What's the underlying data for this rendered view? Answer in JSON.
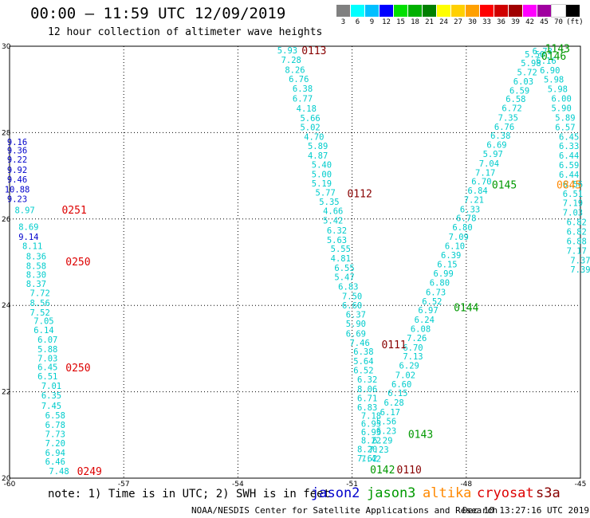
{
  "title": "00:00 – 11:59 UTC 12/09/2019",
  "subtitle": "12 hour collection of altimeter wave heights",
  "note": "note: 1) Time is in UTC; 2) SWH is in feet",
  "satellites": [
    {
      "name": "jason2",
      "color": "#0000cc"
    },
    {
      "name": "jason3",
      "color": "#009900"
    },
    {
      "name": "altika",
      "color": "#ff8800"
    },
    {
      "name": "cryosat",
      "color": "#dd0000"
    },
    {
      "name": "s3a",
      "color": "#880000"
    }
  ],
  "credit": "NOAA/NESDIS Center for Satellite Applications and Research",
  "timestamp": "Dec 10 13:27:16 UTC 2019",
  "color_scale": {
    "labels": [
      "3",
      "6",
      "9",
      "12",
      "15",
      "18",
      "21",
      "24",
      "27",
      "30",
      "33",
      "36",
      "39",
      "42",
      "45",
      "70",
      "(ft)"
    ],
    "colors": [
      "#808080",
      "#00ffff",
      "#00bfff",
      "#0000ff",
      "#00e000",
      "#00b000",
      "#008000",
      "#ffff00",
      "#ffd000",
      "#ffa000",
      "#ff0000",
      "#d00000",
      "#a00000",
      "#ff00ff",
      "#a000a0",
      "#ffffff",
      "#000000"
    ]
  },
  "chart_data": {
    "type": "scatter",
    "xlim": [
      -60,
      -45
    ],
    "ylim": [
      20,
      30
    ],
    "x_ticks": [
      -60,
      -57,
      -54,
      -51,
      -48,
      -45
    ],
    "y_ticks": [
      20,
      22,
      24,
      26,
      28,
      30
    ],
    "grid": true,
    "tracks": [
      {
        "name": "jason2",
        "color": "#0000cc",
        "points": [
          {
            "lon": -59.8,
            "lat": 27.79,
            "v": "9.16"
          },
          {
            "lon": -59.8,
            "lat": 27.59,
            "v": "9.36"
          },
          {
            "lon": -59.8,
            "lat": 27.38,
            "v": "9.22"
          },
          {
            "lon": -59.8,
            "lat": 27.14,
            "v": "9.92"
          },
          {
            "lon": -59.8,
            "lat": 26.92,
            "v": "9.46"
          },
          {
            "lon": -59.8,
            "lat": 26.69,
            "v": "10.88"
          },
          {
            "lon": -59.8,
            "lat": 26.47,
            "v": "9.23"
          },
          {
            "lon": -59.5,
            "lat": 25.59,
            "v": "9.14"
          }
        ]
      },
      {
        "name": "jason3-track-a",
        "color": "#00cccc",
        "points": [
          {
            "lon": -59.6,
            "lat": 26.21,
            "v": "8.97"
          },
          {
            "lon": -59.5,
            "lat": 25.82,
            "v": "8.69"
          },
          {
            "lon": -59.4,
            "lat": 25.38,
            "v": "8.11"
          },
          {
            "lon": -59.3,
            "lat": 25.14,
            "v": "8.36"
          },
          {
            "lon": -59.3,
            "lat": 24.92,
            "v": "8.58"
          },
          {
            "lon": -59.3,
            "lat": 24.71,
            "v": "8.30"
          },
          {
            "lon": -59.3,
            "lat": 24.5,
            "v": "8.37"
          },
          {
            "lon": -59.2,
            "lat": 24.29,
            "v": "7.72"
          },
          {
            "lon": -59.2,
            "lat": 24.06,
            "v": "8.56"
          },
          {
            "lon": -59.2,
            "lat": 23.84,
            "v": "7.52"
          },
          {
            "lon": -59.1,
            "lat": 23.64,
            "v": "7.05"
          },
          {
            "lon": -59.1,
            "lat": 23.43,
            "v": "6.14"
          },
          {
            "lon": -59.0,
            "lat": 23.21,
            "v": "6.07"
          },
          {
            "lon": -59.0,
            "lat": 22.99,
            "v": "5.88"
          },
          {
            "lon": -59.0,
            "lat": 22.78,
            "v": "7.03"
          },
          {
            "lon": -59.0,
            "lat": 22.57,
            "v": "6.45"
          },
          {
            "lon": -59.0,
            "lat": 22.36,
            "v": "6.51"
          },
          {
            "lon": -58.9,
            "lat": 22.14,
            "v": "7.01"
          },
          {
            "lon": -58.9,
            "lat": 21.92,
            "v": "6.35"
          },
          {
            "lon": -58.9,
            "lat": 21.68,
            "v": "7.45"
          },
          {
            "lon": -58.8,
            "lat": 21.46,
            "v": "6.58"
          },
          {
            "lon": -58.8,
            "lat": 21.24,
            "v": "6.78"
          },
          {
            "lon": -58.8,
            "lat": 21.02,
            "v": "7.73"
          },
          {
            "lon": -58.8,
            "lat": 20.81,
            "v": "7.20"
          },
          {
            "lon": -58.8,
            "lat": 20.59,
            "v": "6.94"
          },
          {
            "lon": -58.8,
            "lat": 20.39,
            "v": "6.46"
          },
          {
            "lon": -58.7,
            "lat": 20.17,
            "v": "7.48"
          }
        ]
      },
      {
        "name": "jason3-track-b",
        "color": "#00cccc",
        "points": [
          {
            "lon": -52.7,
            "lat": 29.91,
            "v": "5.93"
          },
          {
            "lon": -52.6,
            "lat": 29.69,
            "v": "7.28"
          },
          {
            "lon": -52.5,
            "lat": 29.46,
            "v": "8.26"
          },
          {
            "lon": -52.4,
            "lat": 29.24,
            "v": "6.76"
          },
          {
            "lon": -52.3,
            "lat": 29.02,
            "v": "6.38"
          },
          {
            "lon": -52.3,
            "lat": 28.79,
            "v": "6.77"
          },
          {
            "lon": -52.2,
            "lat": 28.56,
            "v": "4.18"
          },
          {
            "lon": -52.1,
            "lat": 28.34,
            "v": "5.66"
          },
          {
            "lon": -52.1,
            "lat": 28.13,
            "v": "5.02"
          },
          {
            "lon": -52.0,
            "lat": 27.91,
            "v": "4.70"
          },
          {
            "lon": -51.9,
            "lat": 27.69,
            "v": "5.89"
          },
          {
            "lon": -51.9,
            "lat": 27.47,
            "v": "4.87"
          },
          {
            "lon": -51.8,
            "lat": 27.26,
            "v": "5.40"
          },
          {
            "lon": -51.8,
            "lat": 27.04,
            "v": "5.00"
          },
          {
            "lon": -51.8,
            "lat": 26.83,
            "v": "5.19"
          },
          {
            "lon": -51.7,
            "lat": 26.61,
            "v": "5.77"
          },
          {
            "lon": -51.6,
            "lat": 26.4,
            "v": "5.35"
          },
          {
            "lon": -51.5,
            "lat": 26.19,
            "v": "4.66"
          },
          {
            "lon": -51.5,
            "lat": 25.97,
            "v": "5.42"
          },
          {
            "lon": -51.4,
            "lat": 25.74,
            "v": "6.32"
          },
          {
            "lon": -51.4,
            "lat": 25.52,
            "v": "5.63"
          },
          {
            "lon": -51.3,
            "lat": 25.31,
            "v": "5.55"
          },
          {
            "lon": -51.3,
            "lat": 25.09,
            "v": "4.81"
          },
          {
            "lon": -51.2,
            "lat": 24.87,
            "v": "6.55"
          },
          {
            "lon": -51.2,
            "lat": 24.66,
            "v": "5.47"
          },
          {
            "lon": -51.1,
            "lat": 24.44,
            "v": "6.83"
          },
          {
            "lon": -51.0,
            "lat": 24.22,
            "v": "7.50"
          },
          {
            "lon": -51.0,
            "lat": 24.0,
            "v": "6.60"
          },
          {
            "lon": -50.9,
            "lat": 23.79,
            "v": "6.37"
          },
          {
            "lon": -50.9,
            "lat": 23.58,
            "v": "5.90"
          },
          {
            "lon": -50.9,
            "lat": 23.35,
            "v": "6.69"
          },
          {
            "lon": -50.8,
            "lat": 23.14,
            "v": "7.46"
          },
          {
            "lon": -50.7,
            "lat": 22.93,
            "v": "6.38"
          },
          {
            "lon": -50.7,
            "lat": 22.71,
            "v": "5.64"
          },
          {
            "lon": -50.7,
            "lat": 22.5,
            "v": "6.52"
          },
          {
            "lon": -50.6,
            "lat": 22.29,
            "v": "6.32"
          },
          {
            "lon": -50.6,
            "lat": 22.07,
            "v": "8.06"
          },
          {
            "lon": -50.6,
            "lat": 21.85,
            "v": "6.71"
          },
          {
            "lon": -50.6,
            "lat": 21.64,
            "v": "6.83"
          },
          {
            "lon": -50.5,
            "lat": 21.45,
            "v": "7.18"
          },
          {
            "lon": -50.5,
            "lat": 21.26,
            "v": "6.95"
          },
          {
            "lon": -50.5,
            "lat": 21.07,
            "v": "6.93"
          },
          {
            "lon": -50.5,
            "lat": 20.88,
            "v": "8.22"
          },
          {
            "lon": -50.6,
            "lat": 20.67,
            "v": "8.20"
          },
          {
            "lon": -50.6,
            "lat": 20.46,
            "v": "7.62"
          }
        ]
      },
      {
        "name": "jason3-track-c",
        "color": "#00cccc",
        "points": [
          {
            "lon": -50.5,
            "lat": 20.45,
            "v": "7.42"
          },
          {
            "lon": -50.3,
            "lat": 20.66,
            "v": "7.23"
          },
          {
            "lon": -50.2,
            "lat": 20.88,
            "v": "6.29"
          },
          {
            "lon": -50.1,
            "lat": 21.1,
            "v": "6.23"
          },
          {
            "lon": -50.1,
            "lat": 21.32,
            "v": "5.56"
          },
          {
            "lon": -50.0,
            "lat": 21.53,
            "v": "6.17"
          },
          {
            "lon": -49.9,
            "lat": 21.75,
            "v": "6.28"
          },
          {
            "lon": -49.8,
            "lat": 21.97,
            "v": "6.15"
          },
          {
            "lon": -49.7,
            "lat": 22.18,
            "v": "6.60"
          },
          {
            "lon": -49.6,
            "lat": 22.39,
            "v": "7.02"
          },
          {
            "lon": -49.5,
            "lat": 22.61,
            "v": "6.29"
          },
          {
            "lon": -49.4,
            "lat": 22.82,
            "v": "7.13"
          },
          {
            "lon": -49.4,
            "lat": 23.03,
            "v": "6.70"
          },
          {
            "lon": -49.3,
            "lat": 23.25,
            "v": "7.26"
          },
          {
            "lon": -49.2,
            "lat": 23.46,
            "v": "6.08"
          },
          {
            "lon": -49.1,
            "lat": 23.67,
            "v": "6.24"
          },
          {
            "lon": -49.0,
            "lat": 23.89,
            "v": "6.97"
          },
          {
            "lon": -48.9,
            "lat": 24.1,
            "v": "6.52"
          },
          {
            "lon": -48.8,
            "lat": 24.31,
            "v": "6.73"
          },
          {
            "lon": -48.7,
            "lat": 24.53,
            "v": "6.80"
          },
          {
            "lon": -48.6,
            "lat": 24.74,
            "v": "6.99"
          },
          {
            "lon": -48.5,
            "lat": 24.95,
            "v": "6.15"
          },
          {
            "lon": -48.4,
            "lat": 25.17,
            "v": "6.39"
          },
          {
            "lon": -48.3,
            "lat": 25.38,
            "v": "6.10"
          },
          {
            "lon": -48.2,
            "lat": 25.59,
            "v": "7.09"
          },
          {
            "lon": -48.1,
            "lat": 25.81,
            "v": "6.80"
          },
          {
            "lon": -48.0,
            "lat": 26.02,
            "v": "6.78"
          },
          {
            "lon": -47.9,
            "lat": 26.23,
            "v": "6.33"
          },
          {
            "lon": -47.8,
            "lat": 26.45,
            "v": "7.21"
          },
          {
            "lon": -47.7,
            "lat": 26.66,
            "v": "6.84"
          },
          {
            "lon": -47.6,
            "lat": 26.87,
            "v": "6.70"
          },
          {
            "lon": -47.5,
            "lat": 27.08,
            "v": "7.17"
          },
          {
            "lon": -47.4,
            "lat": 27.29,
            "v": "7.04"
          },
          {
            "lon": -47.3,
            "lat": 27.51,
            "v": "5.97"
          },
          {
            "lon": -47.2,
            "lat": 27.72,
            "v": "6.69"
          },
          {
            "lon": -47.1,
            "lat": 27.93,
            "v": "6.38"
          },
          {
            "lon": -47.0,
            "lat": 28.14,
            "v": "6.76"
          },
          {
            "lon": -46.9,
            "lat": 28.35,
            "v": "7.35"
          },
          {
            "lon": -46.8,
            "lat": 28.57,
            "v": "6.72"
          },
          {
            "lon": -46.7,
            "lat": 28.78,
            "v": "6.58"
          },
          {
            "lon": -46.6,
            "lat": 28.98,
            "v": "6.59"
          },
          {
            "lon": -46.5,
            "lat": 29.19,
            "v": "6.03"
          },
          {
            "lon": -46.4,
            "lat": 29.4,
            "v": "5.72"
          },
          {
            "lon": -46.3,
            "lat": 29.61,
            "v": "5.98"
          },
          {
            "lon": -46.2,
            "lat": 29.82,
            "v": "5.50"
          }
        ]
      },
      {
        "name": "jason3-track-d",
        "color": "#00cccc",
        "points": [
          {
            "lon": -46.0,
            "lat": 29.89,
            "v": "6.73"
          },
          {
            "lon": -45.9,
            "lat": 29.67,
            "v": "6.16"
          },
          {
            "lon": -45.8,
            "lat": 29.45,
            "v": "6.90"
          },
          {
            "lon": -45.7,
            "lat": 29.23,
            "v": "5.98"
          },
          {
            "lon": -45.6,
            "lat": 29.01,
            "v": "5.98"
          },
          {
            "lon": -45.5,
            "lat": 28.79,
            "v": "6.00"
          },
          {
            "lon": -45.5,
            "lat": 28.57,
            "v": "5.90"
          },
          {
            "lon": -45.4,
            "lat": 28.35,
            "v": "5.89"
          },
          {
            "lon": -45.4,
            "lat": 28.13,
            "v": "6.57"
          },
          {
            "lon": -45.3,
            "lat": 27.91,
            "v": "6.45"
          },
          {
            "lon": -45.3,
            "lat": 27.69,
            "v": "6.33"
          },
          {
            "lon": -45.3,
            "lat": 27.47,
            "v": "6.44"
          },
          {
            "lon": -45.3,
            "lat": 27.25,
            "v": "6.59"
          },
          {
            "lon": -45.3,
            "lat": 27.03,
            "v": "6.44"
          },
          {
            "lon": -45.2,
            "lat": 26.81,
            "v": "6.56"
          },
          {
            "lon": -45.2,
            "lat": 26.59,
            "v": "6.51"
          },
          {
            "lon": -45.2,
            "lat": 26.37,
            "v": "7.19"
          },
          {
            "lon": -45.2,
            "lat": 26.15,
            "v": "7.03"
          },
          {
            "lon": -45.1,
            "lat": 25.93,
            "v": "6.82"
          },
          {
            "lon": -45.1,
            "lat": 25.71,
            "v": "6.82"
          },
          {
            "lon": -45.1,
            "lat": 25.49,
            "v": "6.88"
          },
          {
            "lon": -45.1,
            "lat": 25.27,
            "v": "7.17"
          },
          {
            "lon": -45.0,
            "lat": 25.05,
            "v": "7.37"
          },
          {
            "lon": -45.0,
            "lat": 24.83,
            "v": "7.39"
          }
        ]
      }
    ],
    "pass_labels": [
      {
        "lon": -52.0,
        "lat": 29.91,
        "text": "0113",
        "color": "#880000"
      },
      {
        "lon": -50.8,
        "lat": 26.6,
        "text": "0112",
        "color": "#880000"
      },
      {
        "lon": -49.9,
        "lat": 23.1,
        "text": "0111",
        "color": "#880000"
      },
      {
        "lon": -49.5,
        "lat": 20.2,
        "text": "0110",
        "color": "#880000"
      },
      {
        "lon": -58.3,
        "lat": 26.22,
        "text": "0251",
        "color": "#dd0000"
      },
      {
        "lon": -58.2,
        "lat": 25.02,
        "text": "0250",
        "color": "#dd0000"
      },
      {
        "lon": -58.2,
        "lat": 22.56,
        "text": "0250",
        "color": "#dd0000"
      },
      {
        "lon": -57.9,
        "lat": 20.17,
        "text": "0249",
        "color": "#dd0000"
      },
      {
        "lon": -49.2,
        "lat": 21.02,
        "text": "0143",
        "color": "#009900"
      },
      {
        "lon": -48.0,
        "lat": 23.96,
        "text": "0144",
        "color": "#009900"
      },
      {
        "lon": -47.0,
        "lat": 26.8,
        "text": "0145",
        "color": "#009900"
      },
      {
        "lon": -45.6,
        "lat": 29.95,
        "text": "1143",
        "color": "#009900"
      },
      {
        "lon": -45.7,
        "lat": 29.78,
        "text": "0146",
        "color": "#009900"
      },
      {
        "lon": -50.2,
        "lat": 20.2,
        "text": "0142",
        "color": "#009900"
      },
      {
        "lon": -45.3,
        "lat": 26.8,
        "text": "0845",
        "color": "#ff8800"
      }
    ]
  }
}
